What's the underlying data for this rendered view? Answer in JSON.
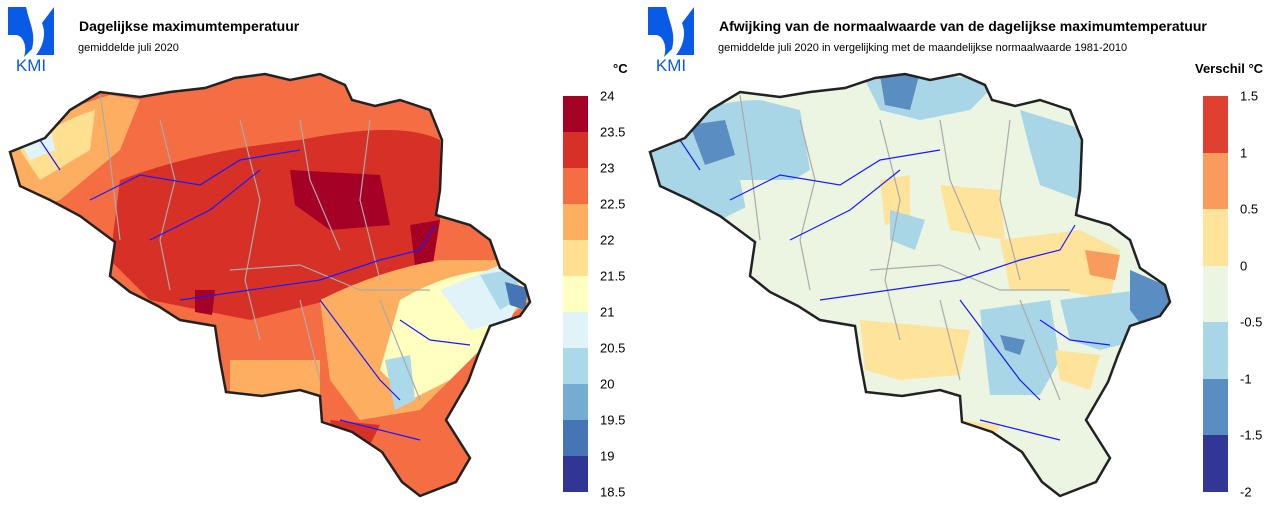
{
  "left": {
    "logo_text": "KMI",
    "title": "Dagelijkse maximumtemperatuur",
    "subtitle": "gemiddelde juli 2020",
    "unit": "°C",
    "legend": {
      "ticks": [
        "24",
        "23.5",
        "23",
        "22.5",
        "22",
        "21.5",
        "21",
        "20.5",
        "20",
        "19.5",
        "19",
        "18.5"
      ],
      "colors": [
        "#a50026",
        "#d73027",
        "#f46d43",
        "#fdae61",
        "#fee090",
        "#ffffbf",
        "#e0f3f8",
        "#abd9e9",
        "#74add1",
        "#4575b4",
        "#313695"
      ]
    }
  },
  "right": {
    "logo_text": "KMI",
    "title": "Afwijking van de normaalwaarde van de dagelijkse maximumtemperatuur",
    "subtitle": "gemiddelde juli 2020 in vergelijking met de maandelijkse normaalwaarde 1981-2010",
    "unit": "Verschil °C",
    "legend": {
      "ticks": [
        "1.5",
        "1",
        "0.5",
        "0",
        "-0.5",
        "-1",
        "-1.5",
        "-2"
      ],
      "colors": [
        "#e04030",
        "#f99b5c",
        "#fee39a",
        "#ebf5e2",
        "#a8d6e6",
        "#5a8ec2",
        "#323694"
      ]
    }
  }
}
